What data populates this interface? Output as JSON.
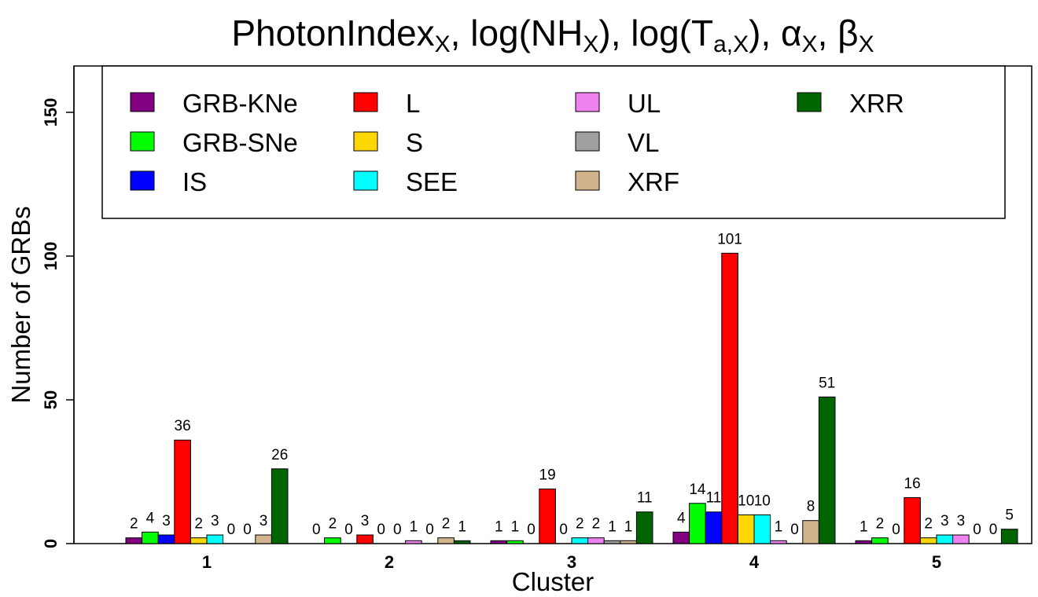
{
  "chart_data": {
    "type": "bar",
    "title": {
      "parts": [
        {
          "text": "PhotonIndex",
          "sub": "X"
        },
        {
          "text": ", log(NH",
          "sub": "X"
        },
        {
          "text": "), log(T",
          "sub": "a,X"
        },
        {
          "text": "), α",
          "sub": "X"
        },
        {
          "text": ", β",
          "sub": "X"
        }
      ]
    },
    "xlabel": "Cluster",
    "ylabel": "Number of GRBs",
    "categories": [
      "1",
      "2",
      "3",
      "4",
      "5"
    ],
    "ylim": [
      0,
      165
    ],
    "yticks": [
      0,
      50,
      100,
      150
    ],
    "legend_placement": "top (inside plot, 4 columns)",
    "grid": false,
    "series": [
      {
        "name": "GRB-KNe",
        "color": "#800080",
        "values": [
          2,
          0,
          1,
          4,
          1
        ]
      },
      {
        "name": "GRB-SNe",
        "color": "#00ff00",
        "values": [
          4,
          2,
          1,
          14,
          2
        ]
      },
      {
        "name": "IS",
        "color": "#0000ff",
        "values": [
          3,
          0,
          0,
          11,
          0
        ]
      },
      {
        "name": "L",
        "color": "#ff0000",
        "values": [
          36,
          3,
          19,
          101,
          16
        ]
      },
      {
        "name": "S",
        "color": "#ffd700",
        "values": [
          2,
          0,
          0,
          10,
          2
        ]
      },
      {
        "name": "SEE",
        "color": "#00ffff",
        "values": [
          3,
          0,
          2,
          10,
          3
        ]
      },
      {
        "name": "UL",
        "color": "#ee82ee",
        "values": [
          0,
          1,
          2,
          1,
          3
        ]
      },
      {
        "name": "VL",
        "color": "#a0a0a0",
        "values": [
          0,
          0,
          1,
          0,
          0
        ]
      },
      {
        "name": "XRF",
        "color": "#d2b48c",
        "values": [
          3,
          2,
          1,
          8,
          0
        ]
      },
      {
        "name": "XRR",
        "color": "#006400",
        "values": [
          26,
          1,
          11,
          51,
          5
        ]
      }
    ]
  }
}
